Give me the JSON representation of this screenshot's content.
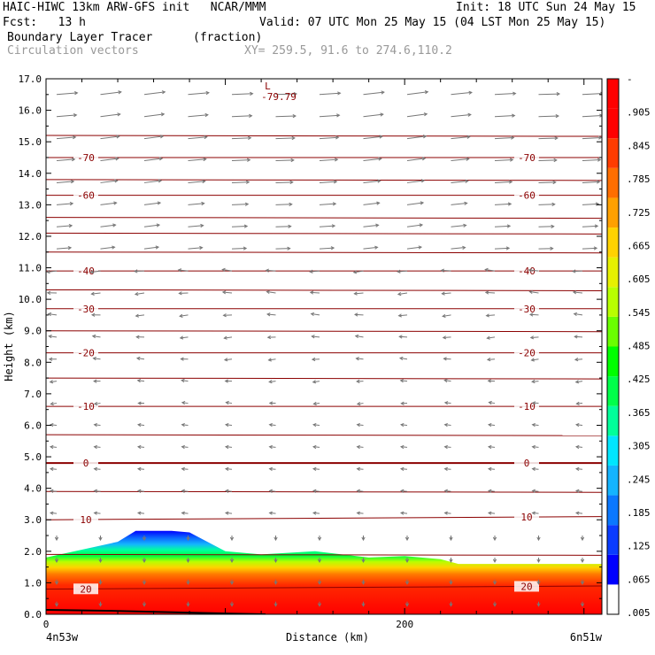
{
  "header": {
    "line1_left": "HAIC-HIWC 13km ARW-GFS init   NCAR/MMM",
    "line1_right": "Init: 18 UTC Sun 24 May 15",
    "line2_left": "Fcst:   13 h",
    "line2_right": "Valid: 07 UTC Mon 25 May 15 (04 LST Mon 25 May 15)",
    "field1_name": "Boundary Layer Tracer",
    "field1_units": "(fraction)",
    "field2_name": "Circulation vectors",
    "xy_text": "XY= 259.5, 91.6 to 274.6,110.2"
  },
  "chart_data": {
    "type": "heatmap",
    "title": "Boundary Layer Tracer (fraction)",
    "xlabel": "Distance (km)",
    "ylabel": "Height (km)",
    "ylim": [
      0,
      17
    ],
    "xlim": [
      0,
      310
    ],
    "y_ticks": [
      "0.0",
      "1.0",
      "2.0",
      "3.0",
      "4.0",
      "5.0",
      "6.0",
      "7.0",
      "8.0",
      "9.0",
      "10.0",
      "11.0",
      "12.0",
      "13.0",
      "14.0",
      "15.0",
      "16.0",
      "17.0"
    ],
    "x_ticks": [
      {
        "x": 0,
        "label": "0"
      },
      {
        "x": 200,
        "label": "200"
      }
    ],
    "x_endpoints": {
      "left": "4n53w",
      "right": "6n51w"
    },
    "colorbar": {
      "labels": [
        ".005",
        ".065",
        ".125",
        ".185",
        ".245",
        ".305",
        ".365",
        ".425",
        ".485",
        ".545",
        ".605",
        ".665",
        ".725",
        ".785",
        ".845",
        ".905",
        "-"
      ],
      "colors": [
        "#ffffff",
        "#0000ff",
        "#0a3cff",
        "#0a78ff",
        "#14b4ff",
        "#00e6ff",
        "#00ff9a",
        "#00ff4a",
        "#00ff00",
        "#6aff00",
        "#b8ff00",
        "#e6f000",
        "#ffd200",
        "#ffa000",
        "#ff6e00",
        "#ff3c00",
        "#ff0000",
        "#ff0000"
      ]
    },
    "tracer_top_km": [
      {
        "x": 0,
        "y": 1.8
      },
      {
        "x": 20,
        "y": 2.05
      },
      {
        "x": 40,
        "y": 2.3
      },
      {
        "x": 50,
        "y": 2.65
      },
      {
        "x": 70,
        "y": 2.65
      },
      {
        "x": 80,
        "y": 2.6
      },
      {
        "x": 100,
        "y": 2.0
      },
      {
        "x": 120,
        "y": 1.9
      },
      {
        "x": 150,
        "y": 2.0
      },
      {
        "x": 180,
        "y": 1.8
      },
      {
        "x": 200,
        "y": 1.85
      },
      {
        "x": 220,
        "y": 1.75
      },
      {
        "x": 230,
        "y": 1.6
      },
      {
        "x": 260,
        "y": 1.6
      },
      {
        "x": 290,
        "y": 1.6
      },
      {
        "x": 310,
        "y": 1.6
      }
    ],
    "temperature_contours": [
      {
        "label": "20",
        "y_left": 0.8,
        "y_right": 0.9
      },
      {
        "label": "10",
        "y_left": 3.0,
        "y_right": 3.1
      },
      {
        "label": "0",
        "y_left": 4.8,
        "y_right": 4.8
      },
      {
        "label": "-10",
        "y_left": 6.6,
        "y_right": 6.6
      },
      {
        "label": "-20",
        "y_left": 8.3,
        "y_right": 8.3
      },
      {
        "label": "-30",
        "y_left": 9.7,
        "y_right": 9.7
      },
      {
        "label": "-40",
        "y_left": 10.9,
        "y_right": 10.9
      },
      {
        "label": "-60",
        "y_left": 13.3,
        "y_right": 13.3
      },
      {
        "label": "-70",
        "y_left": 14.5,
        "y_right": 14.5
      }
    ],
    "minimum_marker": {
      "label": "L",
      "value": "-79.79",
      "x": 122,
      "y": 16.6
    }
  }
}
